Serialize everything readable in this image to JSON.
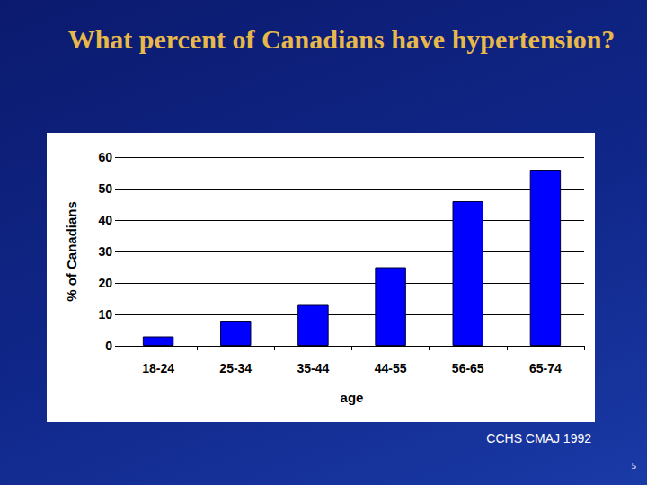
{
  "chart_data": {
    "type": "bar",
    "title": "What percent of Canadians have hypertension?",
    "x_label": "age",
    "y_label": "% of Canadians",
    "categories": [
      "18-24",
      "25-34",
      "35-44",
      "44-55",
      "56-65",
      "65-74"
    ],
    "values": [
      3,
      8,
      13,
      25,
      46,
      56
    ],
    "color": "#0000ff",
    "ylim": [
      0,
      60
    ],
    "yticks": [
      0,
      10,
      20,
      30,
      40,
      50,
      60
    ],
    "grid": true,
    "data_labels": false,
    "annotations": [
      "CCHS CMAJ 1992",
      "5"
    ]
  }
}
